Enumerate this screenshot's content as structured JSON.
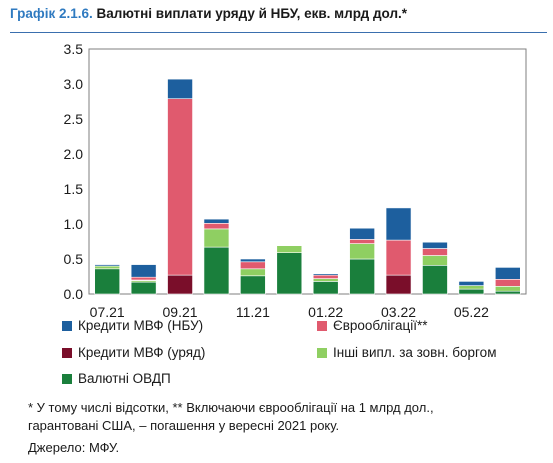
{
  "figure": {
    "number": "Графік 2.1.6.",
    "title": "Валютні виплати уряду й НБУ, екв. млрд дол.*",
    "footnote_line1": "* У тому числі відсотки, ** Включаючи єврооблігації на 1 млрд дол.,",
    "footnote_line2": "гарантовані США, – погашення у вересні 2021 року.",
    "source": "Джерело: МФУ."
  },
  "chart_data": {
    "type": "bar",
    "stacked": true,
    "categories": [
      "07.21",
      "08.21",
      "09.21",
      "10.21",
      "11.21",
      "12.21",
      "01.22",
      "02.22",
      "03.22",
      "04.22",
      "05.22",
      "06.22"
    ],
    "xtick_labels": [
      "07.21",
      "09.21",
      "11.21",
      "01.22",
      "03.22",
      "05.22"
    ],
    "yticks": [
      "0.0",
      "0.5",
      "1.0",
      "1.5",
      "2.0",
      "2.5",
      "3.0",
      "3.5"
    ],
    "ylim": [
      0,
      3.5
    ],
    "grid": false,
    "legend_position": "bottom",
    "series": [
      {
        "name": "Валютні ОВДП",
        "color": "#1a7f3c",
        "values": [
          0.36,
          0.17,
          0.0,
          0.67,
          0.26,
          0.59,
          0.18,
          0.5,
          0.0,
          0.41,
          0.07,
          0.04
        ]
      },
      {
        "name": "Інші випл. за зовн. боргом",
        "color": "#8fcf62",
        "values": [
          0.04,
          0.02,
          0.0,
          0.26,
          0.1,
          0.1,
          0.04,
          0.22,
          0.0,
          0.14,
          0.05,
          0.07
        ]
      },
      {
        "name": "Кредити МВФ (уряд)",
        "color": "#7a0e2a",
        "values": [
          0.0,
          0.01,
          0.27,
          0.0,
          0.0,
          0.0,
          0.0,
          0.0,
          0.27,
          0.0,
          0.0,
          0.0
        ]
      },
      {
        "name": "Єврооблігації**",
        "color": "#e05a6e",
        "values": [
          0.0,
          0.04,
          2.52,
          0.08,
          0.1,
          0.0,
          0.05,
          0.06,
          0.5,
          0.1,
          0.0,
          0.1
        ]
      },
      {
        "name": "Кредити МВФ (НБУ)",
        "color": "#1d5f9e",
        "values": [
          0.02,
          0.18,
          0.28,
          0.06,
          0.04,
          0.0,
          0.02,
          0.16,
          0.46,
          0.09,
          0.06,
          0.17
        ]
      }
    ]
  },
  "legend": [
    {
      "label": "Кредити МВФ (НБУ)",
      "color": "#1d5f9e"
    },
    {
      "label": "Єврооблігації**",
      "color": "#e05a6e"
    },
    {
      "label": "Кредити МВФ (уряд)",
      "color": "#7a0e2a"
    },
    {
      "label": "Інші випл. за зовн. боргом",
      "color": "#8fcf62"
    },
    {
      "label": "Валютні ОВДП",
      "color": "#1a7f3c"
    }
  ]
}
